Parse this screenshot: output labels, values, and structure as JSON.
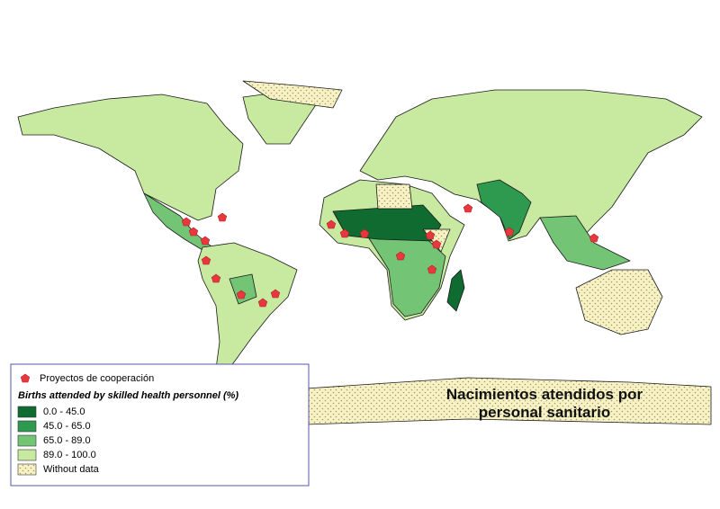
{
  "title_lines": [
    "Nacimientos atendidos por",
    "personal sanitario"
  ],
  "legend": {
    "points_label": "Proyectos de cooperación",
    "heading": "Births attended by skilled health personnel (%)",
    "items": [
      {
        "label": "0.0 - 45.0",
        "color": "#0f6b2f"
      },
      {
        "label": "45.0 - 65.0",
        "color": "#2e9a4f"
      },
      {
        "label": "65.0 - 89.0",
        "color": "#74c476"
      },
      {
        "label": "89.0 - 100.0",
        "color": "#c7e9a0"
      },
      {
        "label": "Without data",
        "color": "#f7f2c6"
      }
    ]
  }
}
